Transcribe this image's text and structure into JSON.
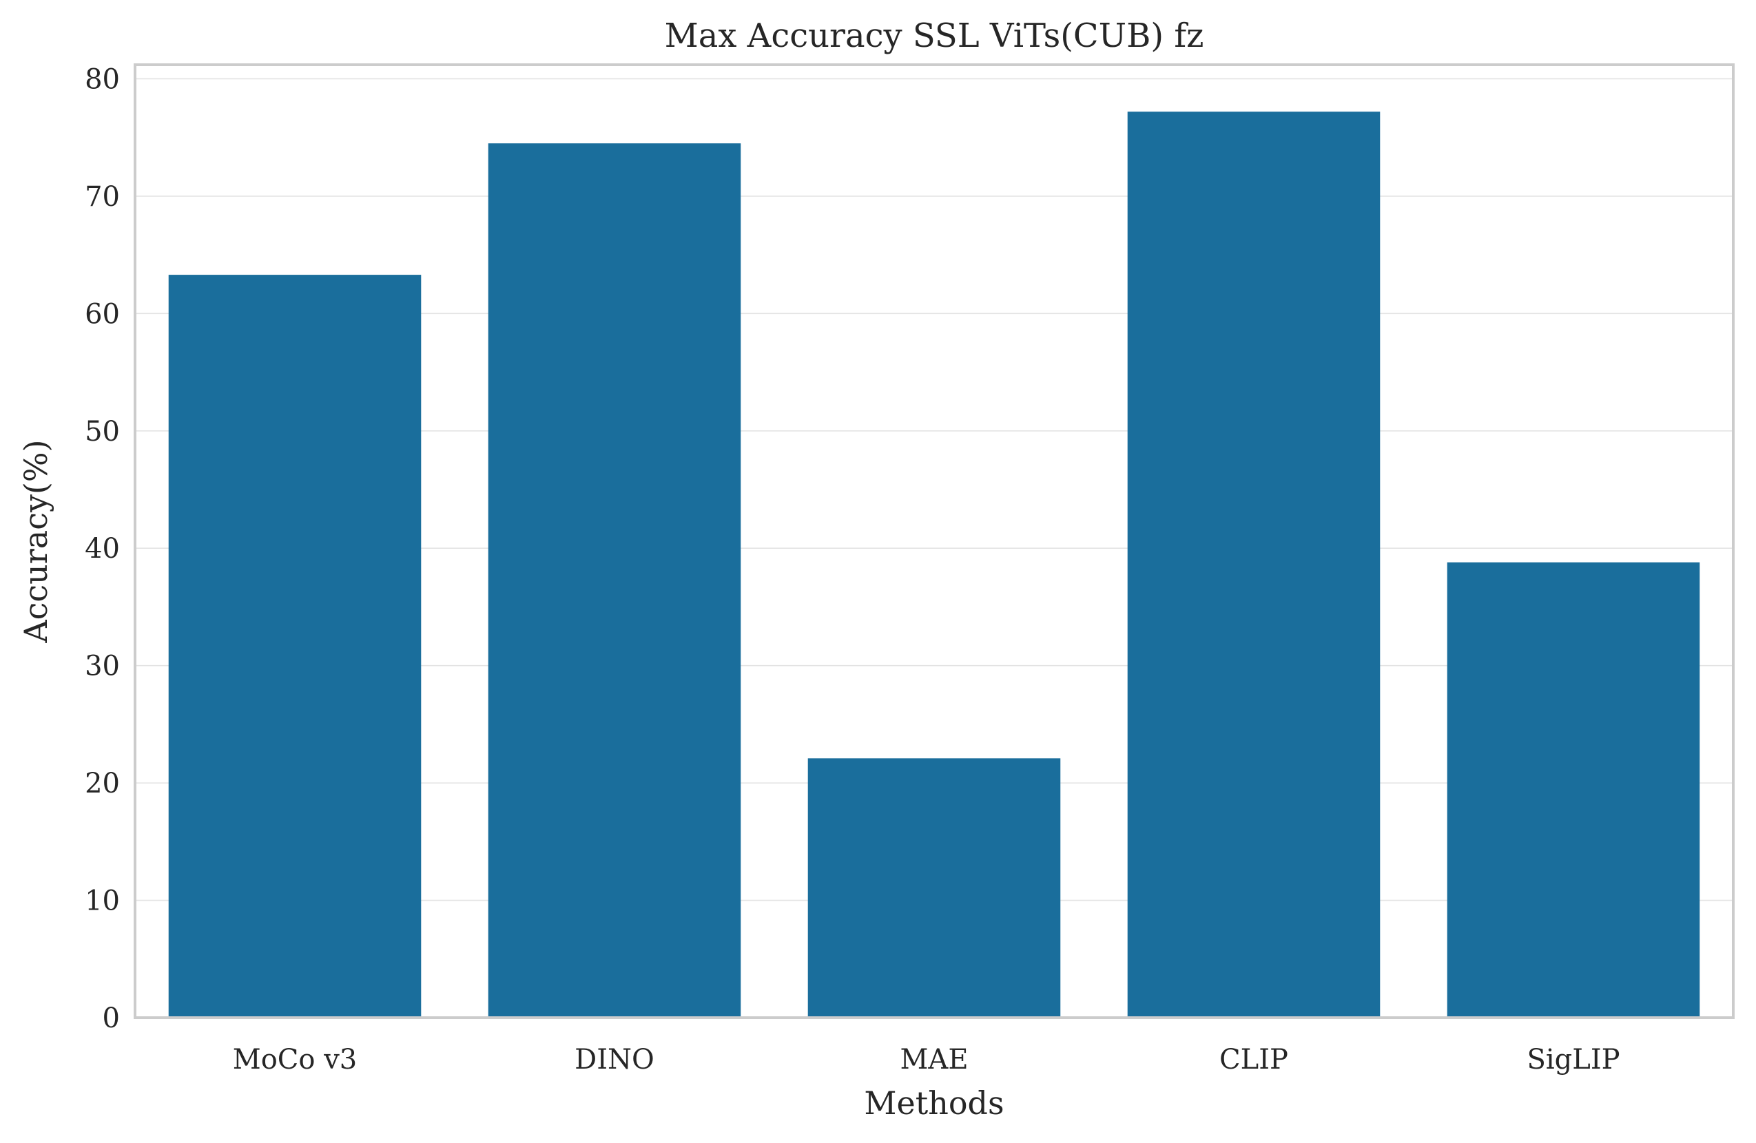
{
  "chart_data": {
    "type": "bar",
    "title": "Max Accuracy SSL ViTs(CUB) fz",
    "xlabel": "Methods",
    "ylabel": "Accuracy(%)",
    "categories": [
      "MoCo v3",
      "DINO",
      "MAE",
      "CLIP",
      "SigLIP"
    ],
    "values": [
      63.3,
      74.5,
      22.1,
      77.2,
      38.8
    ],
    "ylim": [
      0,
      81.2
    ],
    "yticks": [
      0,
      10,
      20,
      30,
      40,
      50,
      60,
      70,
      80
    ],
    "grid": true,
    "bar_color": "#1a6e9c"
  }
}
